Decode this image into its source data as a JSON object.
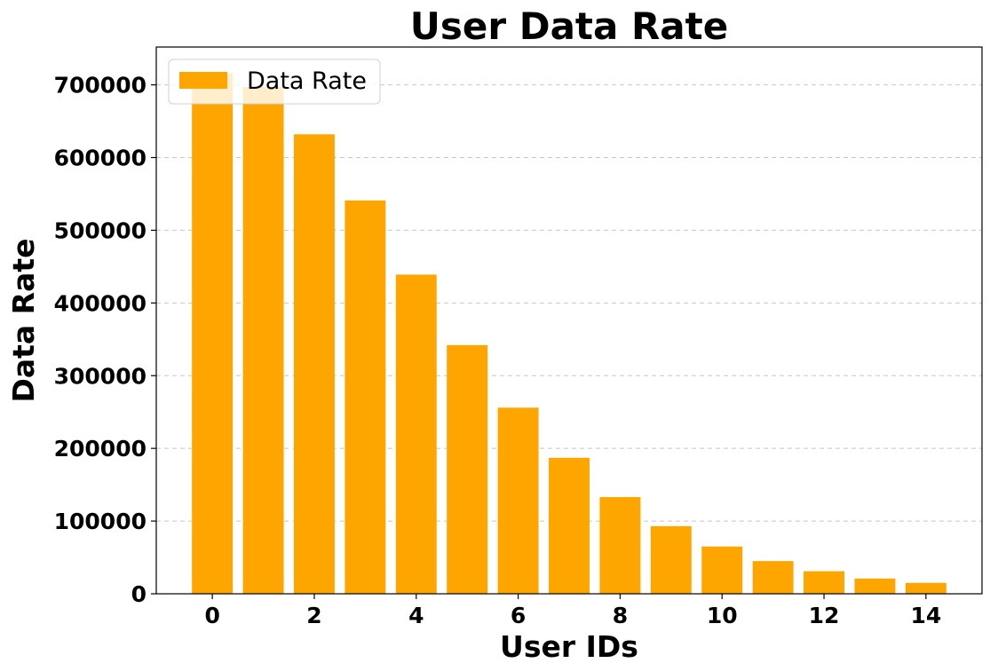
{
  "chart_data": {
    "type": "bar",
    "title": "User Data Rate",
    "xlabel": "User IDs",
    "ylabel": "Data Rate",
    "x": [
      0,
      1,
      2,
      3,
      4,
      5,
      6,
      7,
      8,
      9,
      10,
      11,
      12,
      13,
      14
    ],
    "series": [
      {
        "name": "Data Rate",
        "color": "#ffa500",
        "values": [
          716000,
          697000,
          632000,
          541000,
          439000,
          342000,
          256000,
          187000,
          133000,
          93000,
          65000,
          45000,
          31000,
          21000,
          15000
        ]
      }
    ],
    "xticks": [
      0,
      2,
      4,
      6,
      8,
      10,
      12,
      14
    ],
    "yticks": [
      0,
      100000,
      200000,
      300000,
      400000,
      500000,
      600000,
      700000
    ],
    "xlim": [
      -1.1,
      15.1
    ],
    "ylim": [
      0,
      752000
    ],
    "grid": "y-dashed",
    "legend_position": "top-left"
  }
}
